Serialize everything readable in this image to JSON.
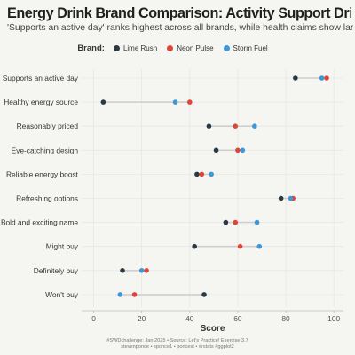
{
  "title": "Energy Drink Brand Comparison: Activity Support Drives High Scores",
  "subtitle": "'Supports an active day' ranks highest across all brands, while health claims show largest variation",
  "legend": {
    "title": "Brand:"
  },
  "caption": {
    "line1": "#SWDchallenge: Jan 2025 • Source: Let's Practice! Exercise 3.7",
    "line2": "stevenponce • sponce1 • poncest • #rstats #ggplot2"
  },
  "colors": {
    "Lime Rush": "#2b3a42",
    "Neon Pulse": "#e0453a",
    "Storm Fuel": "#3f97d8",
    "segment": "#cfcfcf",
    "grid": "#e6e6e2"
  },
  "chart_data": {
    "type": "dot",
    "xlabel": "Score",
    "ylabel": "",
    "xlim": [
      -5,
      104
    ],
    "xticks": [
      0,
      20,
      40,
      60,
      80,
      100
    ],
    "grid": true,
    "legend_position": "top",
    "categories": [
      "Supports an active day",
      "Healthy energy source",
      "Reasonably priced",
      "Eye-catching design",
      "Reliable energy boost",
      "Refreshing options",
      "Bold and exciting name",
      "Might buy",
      "Definitely buy",
      "Won't buy"
    ],
    "series": [
      {
        "name": "Lime Rush",
        "values": [
          84,
          4,
          48,
          51,
          43,
          78,
          55,
          42,
          12,
          46
        ]
      },
      {
        "name": "Neon Pulse",
        "values": [
          97,
          40,
          59,
          60,
          45,
          83,
          59,
          61,
          22,
          17
        ]
      },
      {
        "name": "Storm Fuel",
        "values": [
          95,
          34,
          67,
          62,
          49,
          82,
          68,
          69,
          20,
          11
        ]
      }
    ]
  }
}
